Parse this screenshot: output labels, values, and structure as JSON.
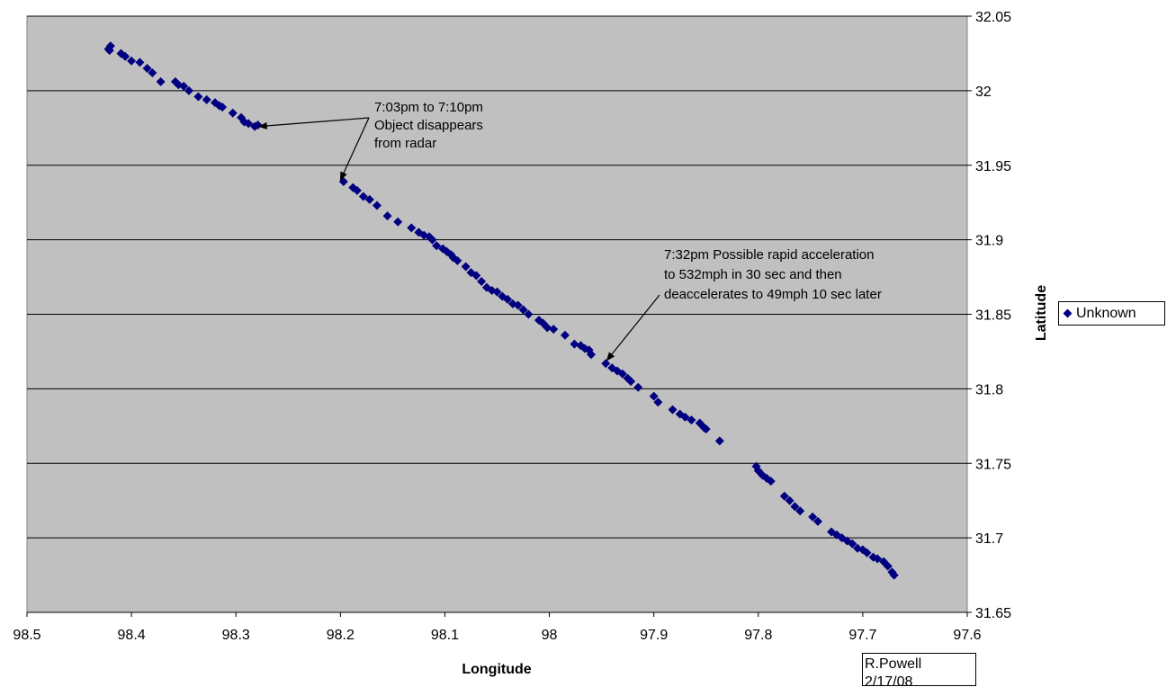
{
  "chart_data": {
    "type": "scatter",
    "xlabel": "Longitude",
    "ylabel": "Latitude",
    "xlim": [
      98.5,
      97.6
    ],
    "ylim": [
      31.65,
      32.05
    ],
    "x_reversed": true,
    "y_axis_side": "right",
    "grid": "horizontal",
    "plot_background": "#c0c0c0",
    "marker": "diamond",
    "marker_color": "#000080",
    "x_ticks": [
      "98.5",
      "98.4",
      "98.3",
      "98.2",
      "98.1",
      "98",
      "97.9",
      "97.8",
      "97.7",
      "97.6"
    ],
    "y_ticks": [
      "31.65",
      "31.7",
      "31.75",
      "31.8",
      "31.85",
      "31.9",
      "31.95",
      "32",
      "32.05"
    ],
    "legend": {
      "placement": "right",
      "entries": [
        "Unknown"
      ]
    },
    "series": [
      {
        "name": "Unknown",
        "x": [
          98.422,
          98.42,
          98.421,
          98.41,
          98.406,
          98.4,
          98.392,
          98.385,
          98.38,
          98.372,
          98.358,
          98.355,
          98.35,
          98.345,
          98.336,
          98.328,
          98.32,
          98.316,
          98.313,
          98.303,
          98.295,
          98.292,
          98.288,
          98.282,
          98.279,
          98.197,
          98.188,
          98.184,
          98.178,
          98.172,
          98.165,
          98.155,
          98.145,
          98.132,
          98.125,
          98.12,
          98.115,
          98.112,
          98.108,
          98.102,
          98.098,
          98.094,
          98.092,
          98.088,
          98.08,
          98.075,
          98.07,
          98.065,
          98.06,
          98.055,
          98.05,
          98.045,
          98.04,
          98.035,
          98.03,
          98.025,
          98.02,
          98.01,
          98.006,
          98.002,
          97.996,
          97.985,
          97.976,
          97.97,
          97.966,
          97.962,
          97.96,
          97.946,
          97.94,
          97.935,
          97.93,
          97.925,
          97.922,
          97.915,
          97.9,
          97.896,
          97.882,
          97.875,
          97.87,
          97.864,
          97.856,
          97.852,
          97.85,
          97.837,
          97.802,
          97.8,
          97.796,
          97.792,
          97.788,
          97.775,
          97.77,
          97.765,
          97.76,
          97.748,
          97.743,
          97.73,
          97.725,
          97.72,
          97.715,
          97.71,
          97.705,
          97.7,
          97.696,
          97.69,
          97.686,
          97.68,
          97.676,
          97.672,
          97.67
        ],
        "y": [
          32.028,
          32.03,
          32.027,
          32.025,
          32.023,
          32.02,
          32.019,
          32.015,
          32.012,
          32.006,
          32.006,
          32.004,
          32.003,
          32.0,
          31.996,
          31.994,
          31.992,
          31.99,
          31.989,
          31.985,
          31.982,
          31.979,
          31.978,
          31.976,
          31.977,
          31.939,
          31.935,
          31.933,
          31.929,
          31.927,
          31.923,
          31.916,
          31.912,
          31.908,
          31.905,
          31.903,
          31.902,
          31.9,
          31.896,
          31.894,
          31.892,
          31.89,
          31.888,
          31.886,
          31.882,
          31.878,
          31.876,
          31.872,
          31.868,
          31.866,
          31.865,
          31.862,
          31.86,
          31.857,
          31.856,
          31.853,
          31.85,
          31.846,
          31.844,
          31.841,
          31.84,
          31.836,
          31.83,
          31.829,
          31.827,
          31.826,
          31.823,
          31.817,
          31.814,
          31.812,
          31.81,
          31.807,
          31.805,
          31.801,
          31.795,
          31.791,
          31.786,
          31.783,
          31.781,
          31.779,
          31.777,
          31.774,
          31.773,
          31.765,
          31.748,
          31.745,
          31.742,
          31.74,
          31.738,
          31.728,
          31.725,
          31.721,
          31.718,
          31.714,
          31.711,
          31.704,
          31.702,
          31.7,
          31.698,
          31.696,
          31.693,
          31.692,
          31.69,
          31.687,
          31.686,
          31.684,
          31.681,
          31.677,
          31.675
        ]
      }
    ],
    "annotations": [
      {
        "lines": [
          "7:03pm to 7:10pm",
          "Object disappears",
          "from radar"
        ],
        "arrows_to": [
          [
            98.278,
            31.976
          ],
          [
            98.2,
            31.94
          ]
        ]
      },
      {
        "lines": [
          "7:32pm Possible rapid acceleration",
          "to 532mph in 30 sec and then",
          "deaccelerates to 49mph 10 sec later"
        ],
        "arrows_to": [
          [
            97.945,
            31.819
          ]
        ]
      }
    ]
  },
  "credit": {
    "line1": "R.Powell",
    "line2": "2/17/08"
  }
}
